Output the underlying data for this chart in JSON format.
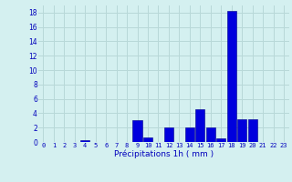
{
  "hours": [
    0,
    1,
    2,
    3,
    4,
    5,
    6,
    7,
    8,
    9,
    10,
    11,
    12,
    13,
    14,
    15,
    16,
    17,
    18,
    19,
    20,
    21,
    22,
    23
  ],
  "values": [
    0,
    0,
    0,
    0,
    0.3,
    0,
    0,
    0,
    0,
    3.0,
    0.6,
    0,
    2.0,
    0,
    2.0,
    4.5,
    2.0,
    0.5,
    18.2,
    3.2,
    3.2,
    0,
    0,
    0
  ],
  "bar_color": "#0000dd",
  "bar_edge_color": "#00008b",
  "background_color": "#d4f0f0",
  "grid_color": "#b8d8d8",
  "xlabel": "Précipitations 1h ( mm )",
  "xlabel_color": "#0000bb",
  "tick_color": "#0000bb",
  "ylim": [
    0,
    19
  ],
  "yticks": [
    0,
    2,
    4,
    6,
    8,
    10,
    12,
    14,
    16,
    18
  ],
  "xticks": [
    0,
    1,
    2,
    3,
    4,
    5,
    6,
    7,
    8,
    9,
    10,
    11,
    12,
    13,
    14,
    15,
    16,
    17,
    18,
    19,
    20,
    21,
    22,
    23
  ]
}
